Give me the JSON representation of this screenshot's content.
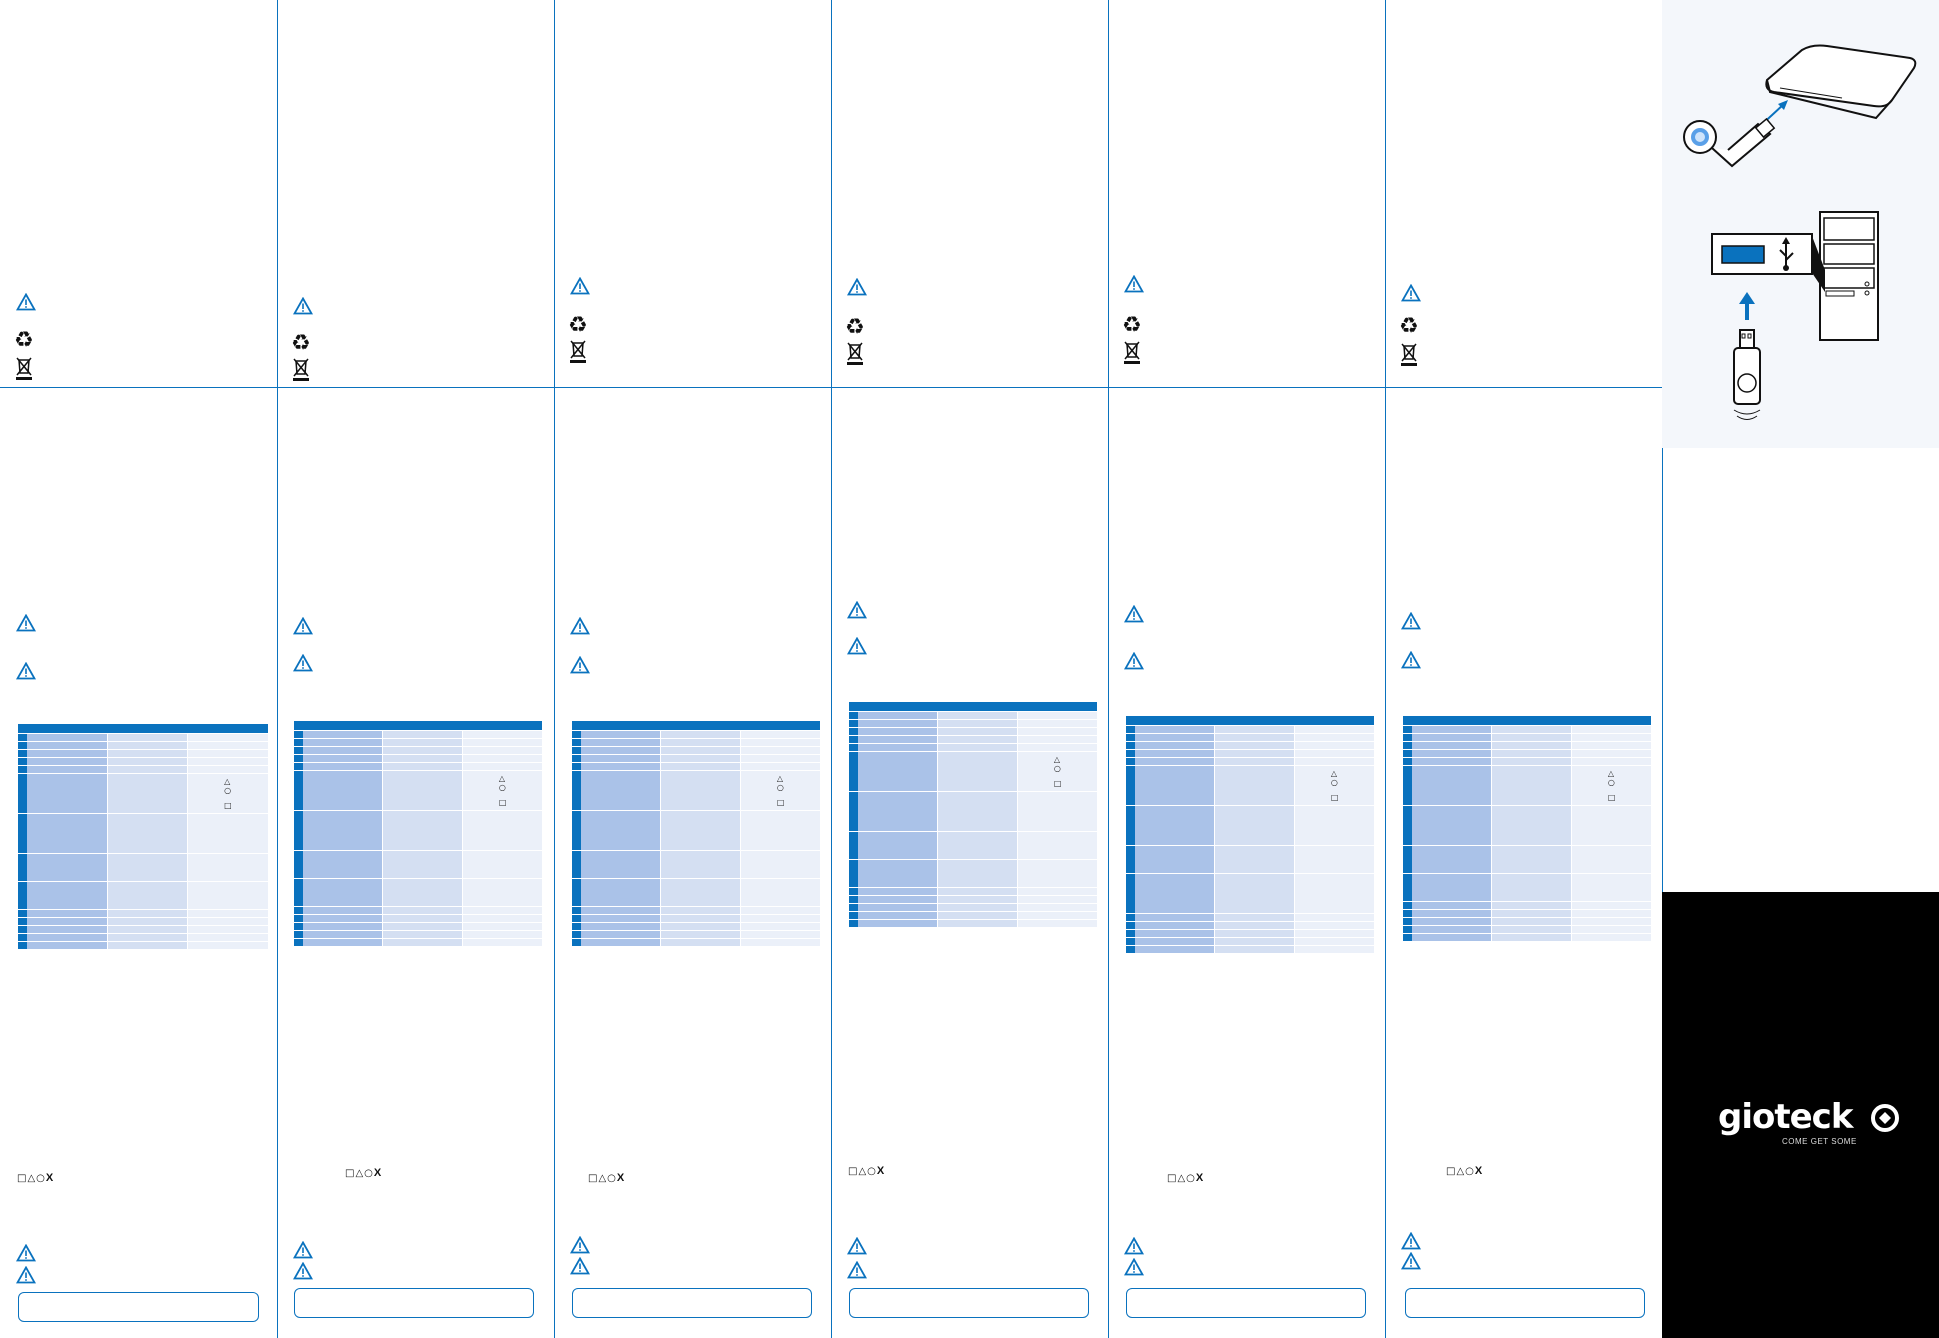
{
  "colors": {
    "accent": "#0a72be",
    "row_dark": "#aac2e8",
    "row_mid": "#d4dff2",
    "row_light": "#ebf0f9",
    "black_panel": "#000000"
  },
  "icons": [
    "warning-triangle-icon",
    "recycle-icon",
    "crossed-bin-icon",
    "usb-dongle-icon",
    "console-icon",
    "pc-tower-icon",
    "usb-icon"
  ],
  "table": {
    "symbols": [
      "△",
      "○",
      "□"
    ]
  },
  "button_row": {
    "symbols": "□△○",
    "cross": "X"
  },
  "logo": {
    "word": "gioteck",
    "tagline": "COME GET SOME"
  }
}
